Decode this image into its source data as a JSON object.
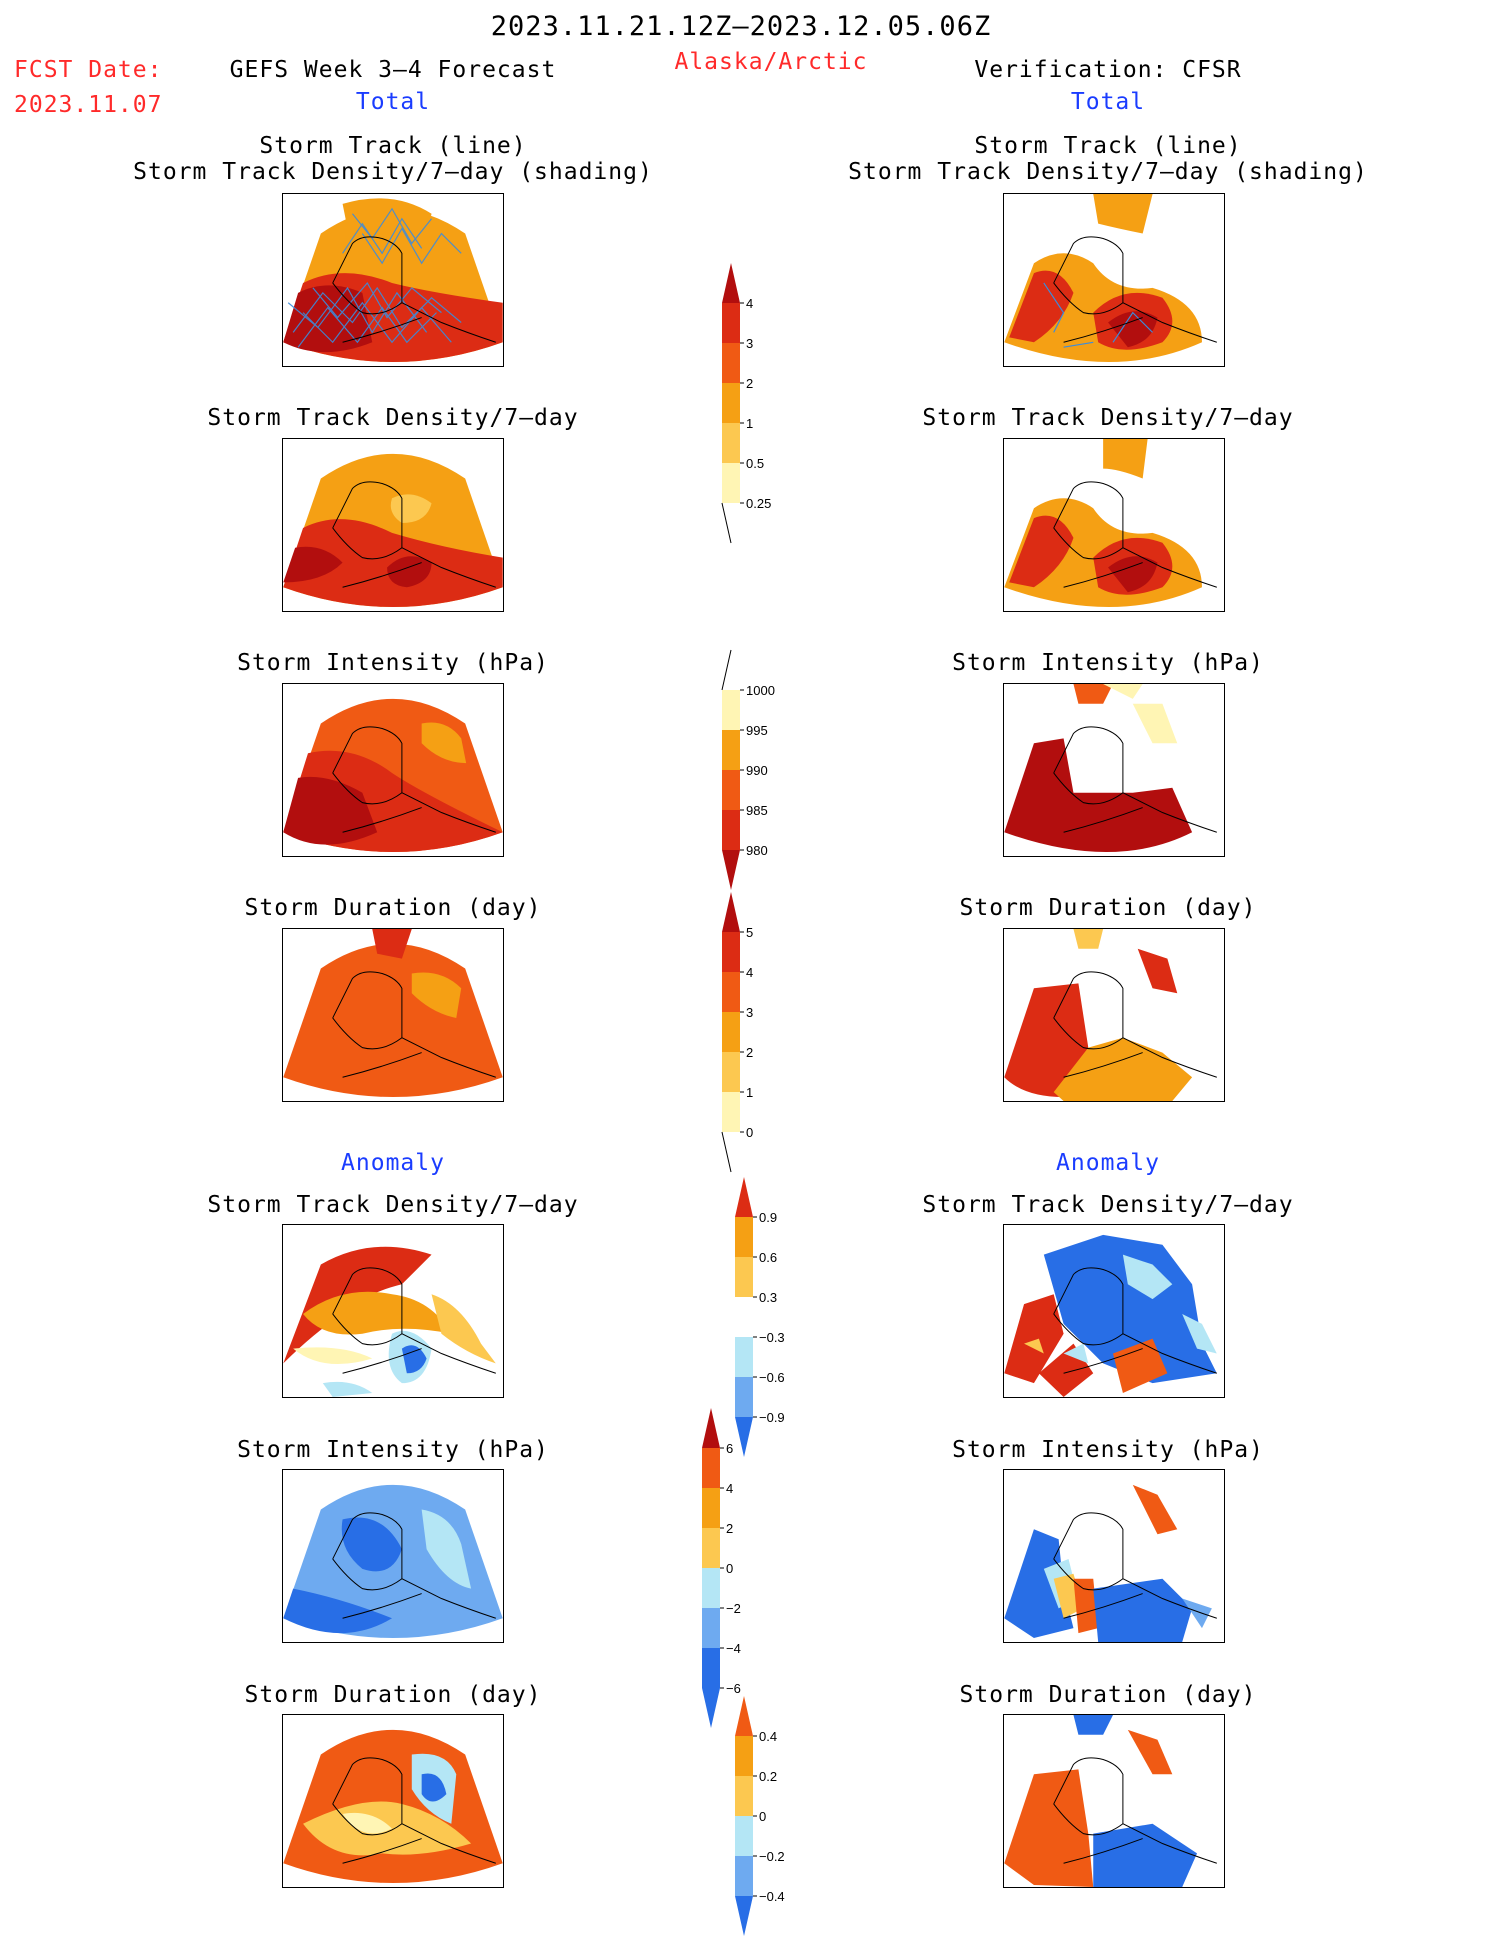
{
  "header": {
    "period": "2023.11.21.12Z–2023.12.05.06Z",
    "fcst_label": "FCST Date:",
    "fcst_date": "2023.11.07",
    "left_title": "GEFS Week 3–4 Forecast",
    "region": "Alaska/Arctic",
    "right_title": "Verification: CFSR"
  },
  "sections": {
    "total": "Total",
    "anomaly": "Anomaly"
  },
  "panels": {
    "track_line": "Storm Track (line)",
    "track_shading": "Storm Track Density/7–day (shading)",
    "density": "Storm Track Density/7–day",
    "intensity": "Storm Intensity (hPa)",
    "duration": "Storm Duration (day)"
  },
  "colorbars": {
    "density_total": [
      "4",
      "3",
      "2",
      "1",
      "0.5",
      "0.25"
    ],
    "intensity_total": [
      "1000",
      "995",
      "990",
      "985",
      "980"
    ],
    "duration_total": [
      "5",
      "4",
      "3",
      "2",
      "1",
      "0"
    ],
    "density_anom": [
      "0.9",
      "0.6",
      "0.3",
      "−0.3",
      "−0.6",
      "−0.9"
    ],
    "intensity_anom": [
      "6",
      "4",
      "2",
      "0",
      "−2",
      "−4",
      "−6"
    ],
    "duration_anom": [
      "0.4",
      "0.2",
      "0",
      "−0.2",
      "−0.4"
    ]
  },
  "colors": {
    "title_red": "#ff2a2a",
    "section_blue": "#1a3cff",
    "darkred": "#b20e0e",
    "red": "#dc2c14",
    "orangered": "#f05a14",
    "orange": "#f5a014",
    "lightorange": "#fcc850",
    "paleyellow": "#fff5b4",
    "lightblue": "#b4e6f5",
    "midblue": "#6eaaf0",
    "blue": "#286ee6",
    "darkblue": "#1450b4",
    "track_line": "#3c8cdc"
  }
}
